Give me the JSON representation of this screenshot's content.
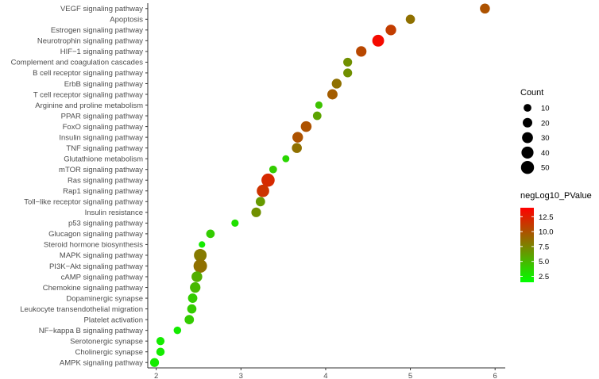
{
  "chart_data": {
    "type": "scatter",
    "xlim": [
      1.9,
      6.12
    ],
    "x_ticks": [
      2,
      3,
      4,
      5,
      6
    ],
    "grid": false,
    "legend_placement": "right",
    "categories": [
      "VEGF signaling pathway",
      "Apoptosis",
      "Estrogen signaling pathway",
      "Neurotrophin signaling pathway",
      "HIF−1 signaling pathway",
      "Complement and coagulation cascades",
      "B cell receptor signaling pathway",
      "ErbB signaling pathway",
      "T cell receptor signaling pathway",
      "Arginine and proline metabolism",
      "PPAR signaling pathway",
      "FoxO signaling pathway",
      "Insulin signaling pathway",
      "TNF signaling pathway",
      "Glutathione metabolism",
      "mTOR signaling pathway",
      "Ras signaling pathway",
      "Rap1 signaling pathway",
      "Toll−like receptor signaling pathway",
      "Insulin resistance",
      "p53 signaling pathway",
      "Glucagon signaling pathway",
      "Steroid hormone biosynthesis",
      "MAPK signaling pathway",
      "PI3K−Akt signaling pathway",
      "cAMP signaling pathway",
      "Chemokine signaling pathway",
      "Dopaminergic synapse",
      "Leukocyte transendothelial migration",
      "Platelet activation",
      "NF−kappa B signaling pathway",
      "Serotonergic synapse",
      "Cholinergic synapse",
      "AMPK signaling pathway"
    ],
    "points": [
      {
        "x": 5.88,
        "count": 23,
        "p": 10.0
      },
      {
        "x": 5.0,
        "count": 18,
        "p": 8.5
      },
      {
        "x": 4.77,
        "count": 28,
        "p": 11.0
      },
      {
        "x": 4.62,
        "count": 38,
        "p": 13.5
      },
      {
        "x": 4.42,
        "count": 27,
        "p": 10.5
      },
      {
        "x": 4.26,
        "count": 16,
        "p": 7.0
      },
      {
        "x": 4.26,
        "count": 16,
        "p": 7.0
      },
      {
        "x": 4.13,
        "count": 22,
        "p": 8.5
      },
      {
        "x": 4.08,
        "count": 25,
        "p": 9.5
      },
      {
        "x": 3.92,
        "count": 8,
        "p": 4.5
      },
      {
        "x": 3.9,
        "count": 14,
        "p": 6.0
      },
      {
        "x": 3.77,
        "count": 29,
        "p": 10.0
      },
      {
        "x": 3.67,
        "count": 28,
        "p": 10.0
      },
      {
        "x": 3.66,
        "count": 23,
        "p": 8.5
      },
      {
        "x": 3.53,
        "count": 7,
        "p": 3.5
      },
      {
        "x": 3.38,
        "count": 10,
        "p": 4.0
      },
      {
        "x": 3.32,
        "count": 52,
        "p": 12.0
      },
      {
        "x": 3.26,
        "count": 44,
        "p": 11.5
      },
      {
        "x": 3.23,
        "count": 19,
        "p": 6.5
      },
      {
        "x": 3.18,
        "count": 21,
        "p": 7.0
      },
      {
        "x": 2.93,
        "count": 8,
        "p": 3.0
      },
      {
        "x": 2.64,
        "count": 14,
        "p": 4.0
      },
      {
        "x": 2.54,
        "count": 5,
        "p": 2.5
      },
      {
        "x": 2.52,
        "count": 46,
        "p": 8.0
      },
      {
        "x": 2.52,
        "count": 55,
        "p": 8.5
      },
      {
        "x": 2.48,
        "count": 29,
        "p": 5.5
      },
      {
        "x": 2.46,
        "count": 27,
        "p": 5.0
      },
      {
        "x": 2.43,
        "count": 19,
        "p": 4.0
      },
      {
        "x": 2.42,
        "count": 18,
        "p": 4.0
      },
      {
        "x": 2.39,
        "count": 19,
        "p": 4.0
      },
      {
        "x": 2.25,
        "count": 9,
        "p": 2.5
      },
      {
        "x": 2.05,
        "count": 12,
        "p": 2.5
      },
      {
        "x": 2.05,
        "count": 13,
        "p": 2.5
      },
      {
        "x": 1.98,
        "count": 16,
        "p": 2.5
      }
    ],
    "size_legend": {
      "title": "Count",
      "values": [
        10,
        20,
        30,
        40,
        50
      ]
    },
    "color_legend": {
      "title": "negLog10_PValue",
      "min": 1.5,
      "max": 14.0,
      "ticks": [
        2.5,
        5.0,
        7.5,
        10.0,
        12.5
      ],
      "tick_labels": [
        "2.5",
        "5.0",
        "7.5",
        "10.0",
        "12.5"
      ],
      "colors": [
        "#00ff00",
        "#ff0000"
      ]
    }
  }
}
